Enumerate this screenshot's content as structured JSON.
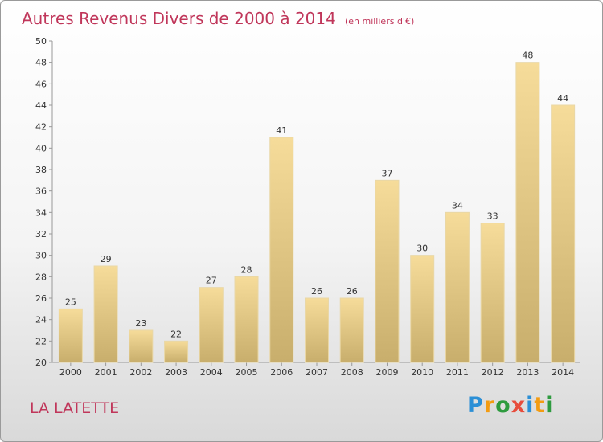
{
  "title": "Autres Revenus Divers de 2000 à 2014",
  "subtitle": "(en milliers d'€)",
  "place": "LA LATETTE",
  "logo": {
    "letters": [
      "P",
      "r",
      "o",
      "x",
      "i",
      "t",
      "i"
    ],
    "colors": [
      "#2b8fd6",
      "#f39c12",
      "#2e9b3f",
      "#e74c3c",
      "#2b8fd6",
      "#f39c12",
      "#2e9b3f"
    ]
  },
  "colors": {
    "title": "#c0365a",
    "bar_light": "#f6dc9a",
    "bar_dark": "#c8ae6c"
  },
  "chart_data": {
    "type": "bar",
    "title": "Autres Revenus Divers de 2000 à 2014",
    "categories": [
      "2000",
      "2001",
      "2002",
      "2003",
      "2004",
      "2005",
      "2006",
      "2007",
      "2008",
      "2009",
      "2010",
      "2011",
      "2012",
      "2013",
      "2014"
    ],
    "values": [
      25,
      29,
      23,
      22,
      27,
      28,
      41,
      26,
      26,
      37,
      30,
      34,
      33,
      48,
      44
    ],
    "ylim": [
      20,
      50
    ],
    "yticks": [
      20,
      22,
      24,
      26,
      28,
      30,
      32,
      34,
      36,
      38,
      40,
      42,
      44,
      46,
      48,
      50
    ],
    "grid": false,
    "data_labels": true
  }
}
